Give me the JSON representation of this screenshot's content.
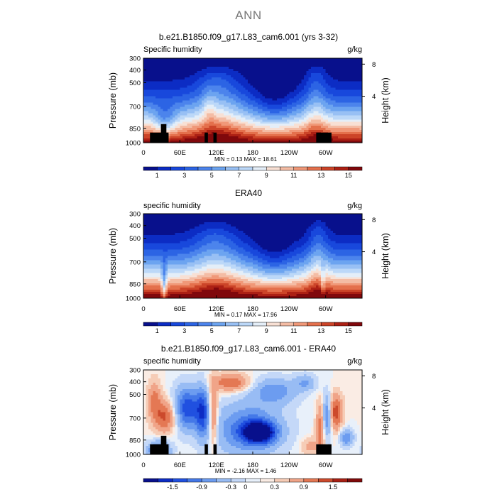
{
  "figure": {
    "title": "ANN"
  },
  "chart_data": [
    {
      "type": "heatmap",
      "title": "b.e21.B1850.f09_g17.L83_cam6.001 (yrs 3-32)",
      "field_label": "Specific humidity",
      "units": "g/kg",
      "ylabel": "Pressure (mb)",
      "ylabel_right": "Height (km)",
      "x_ticks": [
        "0",
        "60E",
        "120E",
        "180",
        "120W",
        "60W"
      ],
      "y_ticks": [
        "300",
        "400",
        "500",
        "700",
        "850",
        "1000"
      ],
      "right_ticks": [
        "8",
        "4"
      ],
      "stats": {
        "min_label": "MIN =",
        "min": "0.13",
        "max_label": "MAX =",
        "max": "18.61"
      },
      "colorbar": {
        "labels": [
          "1",
          "3",
          "5",
          "7",
          "9",
          "11",
          "13",
          "15"
        ]
      },
      "terrain": true,
      "field": "model"
    },
    {
      "type": "heatmap",
      "title": "ERA40",
      "field_label": "specific humidity",
      "units": "g/kg",
      "ylabel": "Pressure (mb)",
      "ylabel_right": "Height (km)",
      "x_ticks": [
        "0",
        "60E",
        "120E",
        "180",
        "120W",
        "60W"
      ],
      "y_ticks": [
        "300",
        "400",
        "500",
        "700",
        "850",
        "1000"
      ],
      "right_ticks": [
        "8",
        "4"
      ],
      "stats": {
        "min_label": "MIN =",
        "min": "0.17",
        "max_label": "MAX =",
        "max": "17.96"
      },
      "colorbar": {
        "labels": [
          "1",
          "3",
          "5",
          "7",
          "9",
          "11",
          "13",
          "15"
        ]
      },
      "terrain": false,
      "field": "obs"
    },
    {
      "type": "heatmap",
      "title": "b.e21.B1850.f09_g17.L83_cam6.001 - ERA40",
      "field_label": "specific humidity",
      "units": "g/kg",
      "ylabel": "Pressure (mb)",
      "ylabel_right": "Height (km)",
      "x_ticks": [
        "0",
        "60E",
        "120E",
        "180",
        "120W",
        "60W"
      ],
      "y_ticks": [
        "300",
        "400",
        "500",
        "700",
        "850",
        "1000"
      ],
      "right_ticks": [
        "8",
        "4"
      ],
      "stats": {
        "min_label": "MIN =",
        "min": "-2.16",
        "max_label": "MAX =",
        "max": "1.46"
      },
      "colorbar": {
        "labels": [
          "-1.5",
          "-0.9",
          "-0.3",
          "0",
          "0.3",
          "0.9",
          "1.5"
        ]
      },
      "terrain": true,
      "field": "diff"
    }
  ],
  "colors": {
    "seq": [
      "#08108c",
      "#0c2cc4",
      "#1848dc",
      "#2c64e4",
      "#4c84ec",
      "#6ca4f0",
      "#98c0f4",
      "#bcd8f8",
      "#e4eef8",
      "#f8e0d4",
      "#f4bca4",
      "#f09878",
      "#e4704c",
      "#cc4428",
      "#ac2014",
      "#80080c"
    ],
    "div": [
      "#08108c",
      "#0c2cc4",
      "#2050e0",
      "#4478e8",
      "#6c9cf0",
      "#98bcf4",
      "#c4d8f8",
      "#e8f0fa",
      "#faece4",
      "#f6ccb6",
      "#f0a488",
      "#e47854",
      "#cc4a2c",
      "#a82014",
      "#800a0a"
    ],
    "terrain": "#000000"
  }
}
